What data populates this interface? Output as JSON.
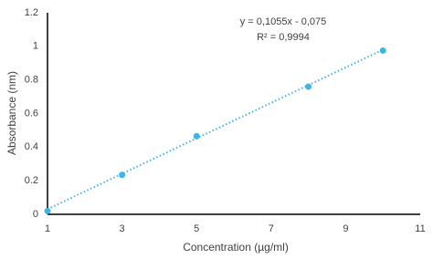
{
  "chart_data": {
    "type": "scatter",
    "x_label": "Concentration (µg/ml)",
    "y_label": "Absorbance (nm)",
    "annotations": [
      "y = 0,1055x - 0,075",
      "R² = 0,9994"
    ],
    "x": [
      1,
      3,
      5,
      8,
      10
    ],
    "values": [
      0.02,
      0.235,
      0.465,
      0.76,
      0.975
    ],
    "color": "#41b4e6",
    "trendline": {
      "x": [
        1,
        10
      ],
      "values": [
        0.0305,
        0.98
      ]
    },
    "xlim": [
      1,
      11
    ],
    "xticks": [
      1,
      3,
      5,
      7,
      9,
      11
    ],
    "ylim": [
      0,
      1.2
    ],
    "yticks": [
      0,
      0.2,
      0.4,
      0.6,
      0.8,
      1,
      1.2
    ],
    "grid": false
  }
}
